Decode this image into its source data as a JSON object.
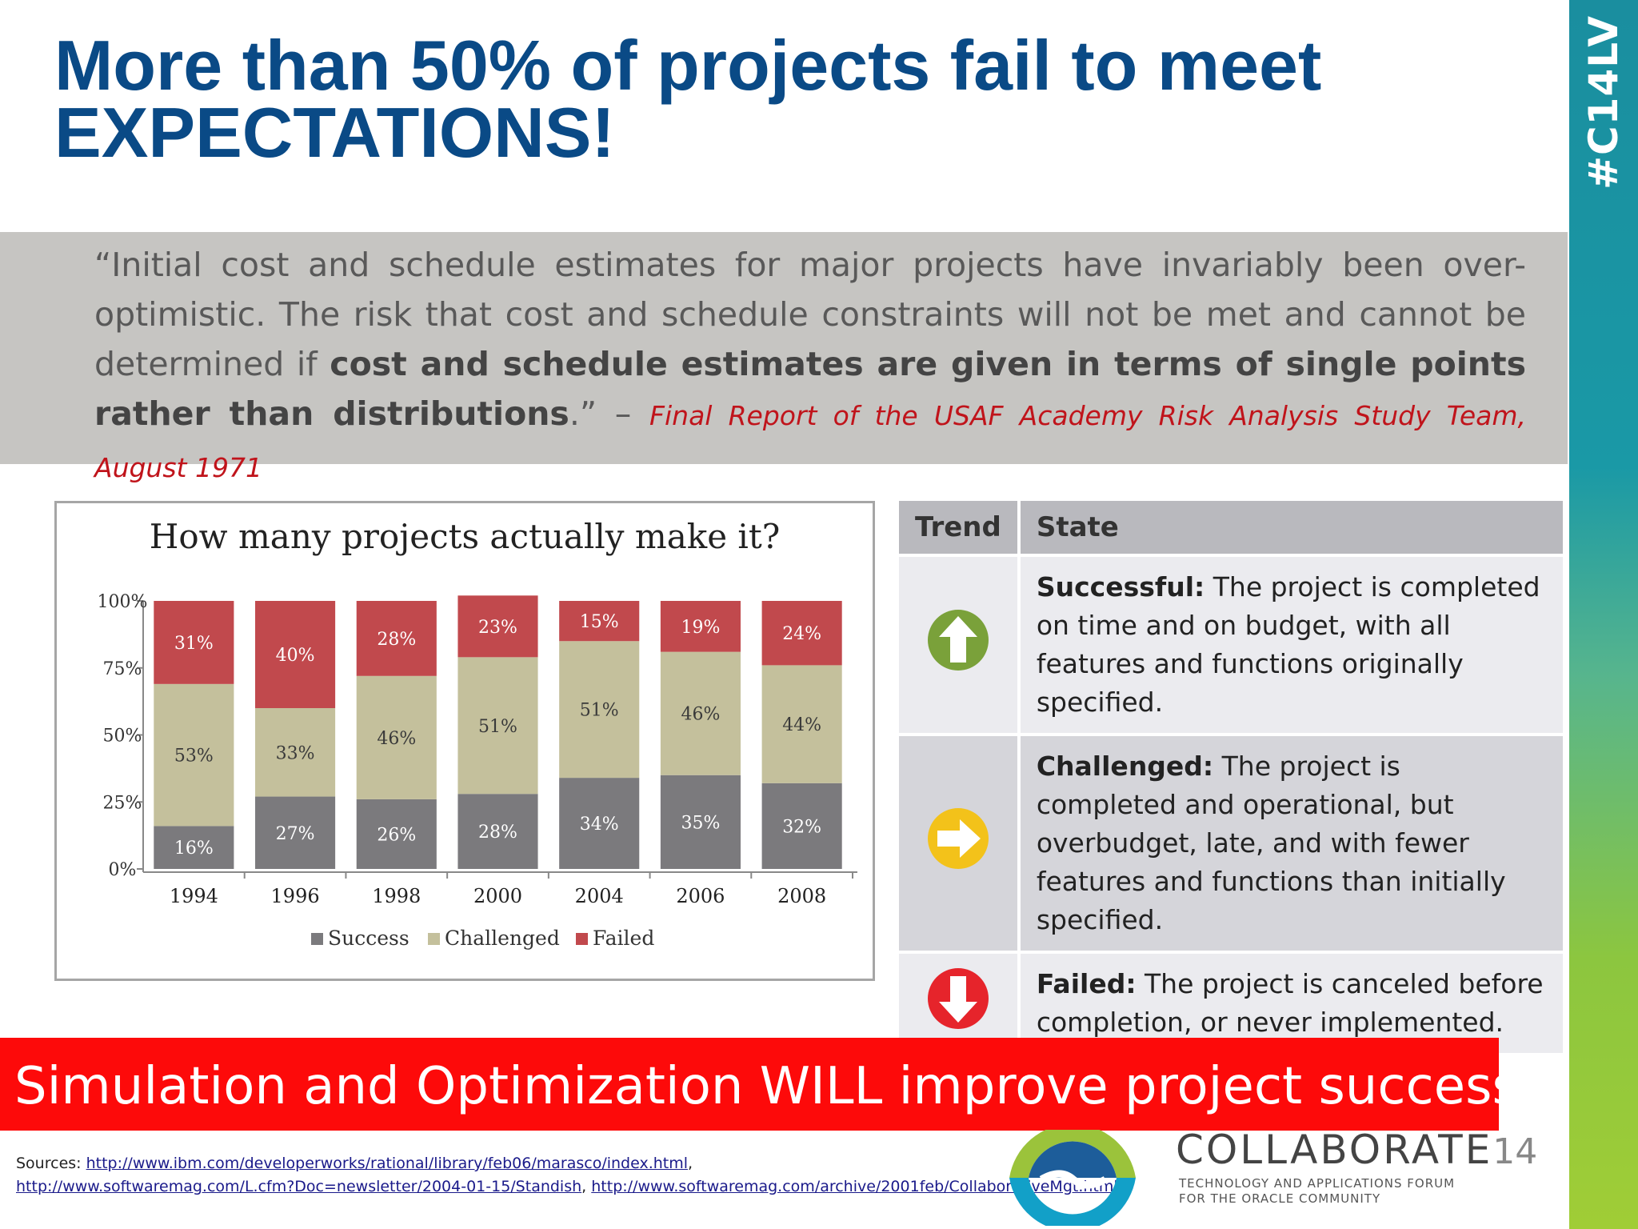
{
  "title": {
    "line1": "More than 50% of projects fail to meet",
    "line2": "EXPECTATIONS!"
  },
  "quote": {
    "part1": "“Initial cost and schedule estimates for major projects have invariably been over-optimistic. The risk that cost and schedule constraints will not be met and cannot be determined if ",
    "bold": "cost and schedule estimates are given in terms of single points rather than distributions",
    "part2": ".” – ",
    "citation": "Final Report of the USAF Academy Risk Analysis Study Team, August 1971"
  },
  "side_tag": "#C14LV",
  "chart_data": {
    "type": "bar",
    "stacked": true,
    "title": "How many  projects actually make it?",
    "categories": [
      "1994",
      "1996",
      "1998",
      "2000",
      "2004",
      "2006",
      "2008"
    ],
    "series": [
      {
        "name": "Success",
        "color": "#7b7a7d",
        "values": [
          16,
          27,
          26,
          28,
          34,
          35,
          32
        ]
      },
      {
        "name": "Challenged",
        "color": "#c4c09c",
        "values": [
          53,
          33,
          46,
          51,
          51,
          46,
          44
        ]
      },
      {
        "name": "Failed",
        "color": "#c1494d",
        "values": [
          31,
          40,
          28,
          23,
          15,
          19,
          24
        ]
      }
    ],
    "ylim": [
      0,
      100
    ],
    "yticks": [
      "0%",
      "25%",
      "50%",
      "75%",
      "100%"
    ],
    "legend": "bottom",
    "grid": false
  },
  "trend_table": {
    "headers": {
      "trend": "Trend",
      "state": "State"
    },
    "rows": [
      {
        "icon": "up-arrow-icon",
        "color": "#7aa13a",
        "label": "Successful:",
        "text": " The project is completed on time and on budget, with all features and functions originally specified."
      },
      {
        "icon": "right-arrow-icon",
        "color": "#f3c21a",
        "label": "Challenged:",
        "text": " The project is completed and operational, but overbudget, late, and with fewer features and functions than initially specified."
      },
      {
        "icon": "down-arrow-icon",
        "color": "#e6242b",
        "label": "Failed:",
        "text": " The project is canceled before completion, or never implemented."
      }
    ]
  },
  "banner": "Simulation and Optimization WILL improve project success",
  "sources": {
    "label": "Sources: ",
    "link1": "http://www.ibm.com/developerworks/rational/library/feb06/marasco/index.html",
    "sep1": ",",
    "link2": "http://www.softwaremag.com/L.cfm?Doc=newsletter/2004-01-15/Standish",
    "sep2": ", ",
    "link3": "http://www.softwaremag.com/archive/2001feb/CollaborativeMgt.html"
  },
  "logo": {
    "name": "COLLABORATE",
    "number": "14",
    "tagline1": "TECHNOLOGY AND APPLICATIONS FORUM",
    "tagline2": "FOR THE ORACLE COMMUNITY"
  }
}
